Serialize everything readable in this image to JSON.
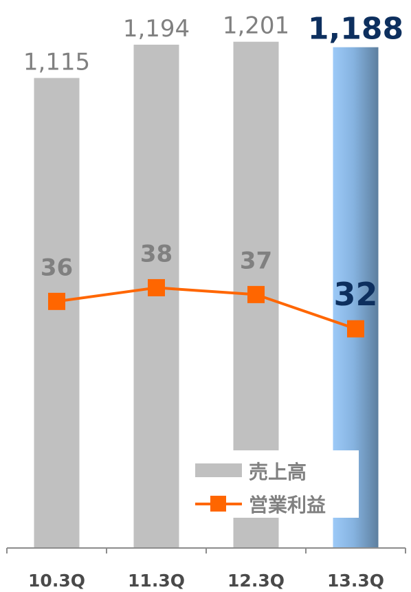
{
  "chart_data": {
    "type": "bar",
    "categories": [
      "10.3Q",
      "11.3Q",
      "12.3Q",
      "13.3Q"
    ],
    "series": [
      {
        "name": "売上高",
        "type": "bar",
        "values": [
          1115,
          1194,
          1201,
          1188
        ],
        "value_labels": [
          "1,115",
          "1,194",
          "1,201",
          "1,188"
        ]
      },
      {
        "name": "営業利益",
        "type": "line",
        "values": [
          36,
          38,
          37,
          32
        ],
        "value_labels": [
          "36",
          "38",
          "37",
          "32"
        ]
      }
    ],
    "bar_ylim": [
      0,
      1300
    ],
    "line_ylim": [
      0,
      80
    ],
    "highlight_index": 3,
    "legend_position": "bottom-right",
    "grid": false,
    "colors": {
      "bar": "#c0c0c0",
      "bar_highlight_light": "#9cc9f7",
      "bar_highlight_dark": "#5d7f9f",
      "line": "#ff6600",
      "label_gray": "#808080",
      "label_highlight": "#0d2f5e",
      "axis": "#8c8c8c"
    }
  }
}
